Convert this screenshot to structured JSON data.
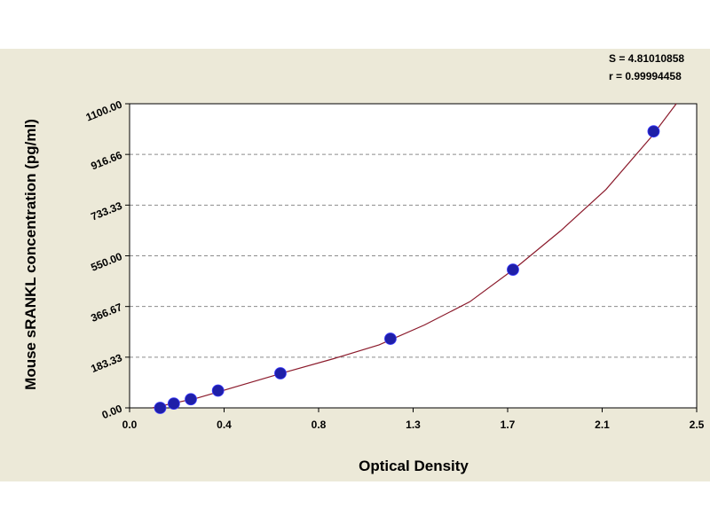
{
  "chart_data": {
    "type": "scatter",
    "title": "",
    "xlabel": "Optical Density",
    "ylabel": "Mouse sRANKL concentration (pg/ml)",
    "xlim": [
      0.0,
      2.5
    ],
    "ylim": [
      0.0,
      1100.0
    ],
    "x_tick_labels": [
      "0.0",
      "0.4",
      "0.8",
      "1.3",
      "1.7",
      "2.1",
      "2.5"
    ],
    "y_tick_labels": [
      "0.00",
      "183.33",
      "366.67",
      "550.00",
      "733.33",
      "916.66",
      "1100.00"
    ],
    "grid": "horizontal dashed",
    "stats": [
      "S = 4.81010858",
      "r = 0.99994458"
    ],
    "series": [
      {
        "kind": "points",
        "x": [
          0.135,
          0.195,
          0.27,
          0.39,
          0.665,
          1.15,
          1.69,
          2.31
        ],
        "y": [
          0,
          15.6,
          31.2,
          62.5,
          125,
          250,
          500,
          1000
        ]
      },
      {
        "kind": "fitted curve",
        "x": [
          0.1,
          0.3,
          0.5,
          0.7,
          0.9,
          1.1,
          1.3,
          1.5,
          1.7,
          1.9,
          2.1,
          2.3,
          2.41
        ],
        "y": [
          0,
          36,
          84,
          132,
          178,
          228,
          300,
          384,
          505,
          640,
          790,
          980,
          1100
        ]
      }
    ],
    "colors": {
      "points": "#1f1fa8",
      "curve": "#8b1a2b",
      "grid": "#8c8c8c",
      "panel": "#ece9d8",
      "plot_bg": "#ffffff"
    }
  }
}
